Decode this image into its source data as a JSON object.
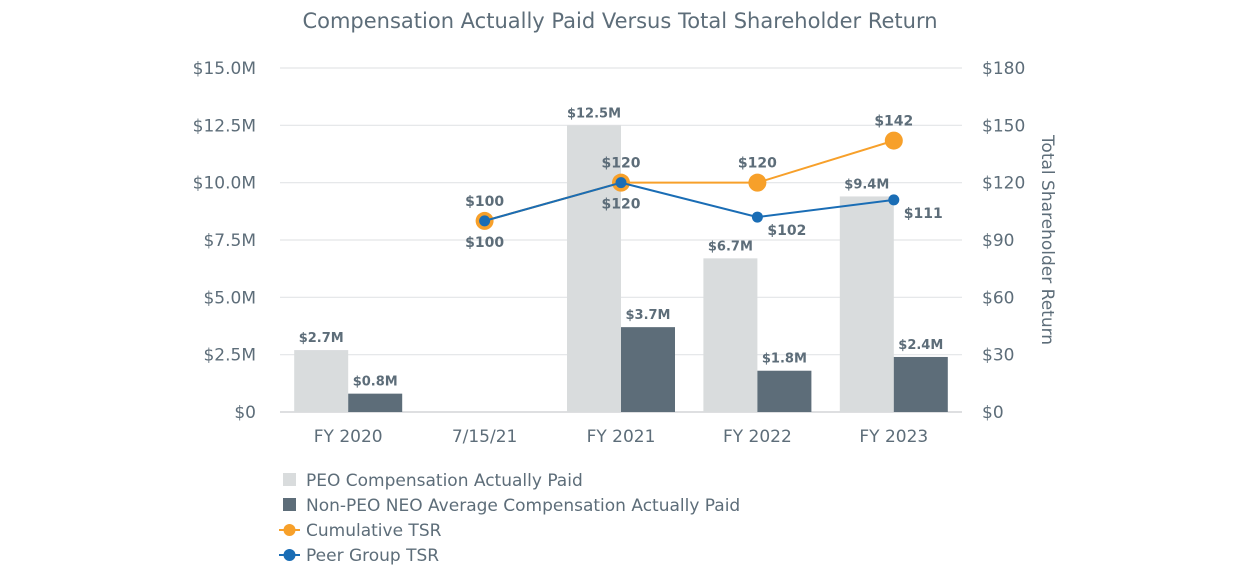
{
  "chart_data": {
    "type": "bar",
    "title": "Compensation Actually Paid Versus Total Shareholder Return",
    "categories": [
      "FY 2020",
      "7/15/21",
      "FY 2021",
      "FY 2022",
      "FY 2023"
    ],
    "y_left": {
      "ylim": [
        0,
        15
      ],
      "ticks": [
        0,
        2.5,
        5,
        7.5,
        10,
        12.5,
        15
      ],
      "tick_labels": [
        "$0",
        "$2.5M",
        "$5.0M",
        "$7.5M",
        "$10.0M",
        "$12.5M",
        "$15.0M"
      ],
      "label": ""
    },
    "y_right": {
      "ylim": [
        0,
        180
      ],
      "ticks": [
        0,
        30,
        60,
        90,
        120,
        150,
        180
      ],
      "tick_labels": [
        "$0",
        "$30",
        "$60",
        "$90",
        "$120",
        "$150",
        "$180"
      ],
      "label": "Total Shareholder Return"
    },
    "grid": true,
    "legend_position": "bottom-left",
    "series": [
      {
        "name": "PEO Compensation Actually Paid",
        "kind": "bar",
        "axis": "left",
        "color": "#d9dcdd",
        "values": [
          2.7,
          null,
          12.5,
          6.7,
          9.4
        ],
        "labels": [
          "$2.7M",
          null,
          "$12.5M",
          "$6.7M",
          "$9.4M"
        ]
      },
      {
        "name": "Non-PEO NEO Average Compensation Actually Paid",
        "kind": "bar",
        "axis": "left",
        "color": "#5d6d79",
        "values": [
          0.8,
          null,
          3.7,
          1.8,
          2.4
        ],
        "labels": [
          "$0.8M",
          null,
          "$3.7M",
          "$1.8M",
          "$2.4M"
        ]
      },
      {
        "name": "Cumulative TSR",
        "kind": "line",
        "axis": "right",
        "color": "#f7a02a",
        "values": [
          null,
          100,
          120,
          120,
          142
        ],
        "labels": [
          null,
          "$100",
          "$120",
          "$120",
          "$142"
        ]
      },
      {
        "name": "Peer Group TSR",
        "kind": "line",
        "axis": "right",
        "color": "#1a6db5",
        "values": [
          null,
          100,
          120,
          102,
          111
        ],
        "labels": [
          null,
          "$100",
          "$120",
          "$102",
          "$111"
        ]
      }
    ]
  }
}
